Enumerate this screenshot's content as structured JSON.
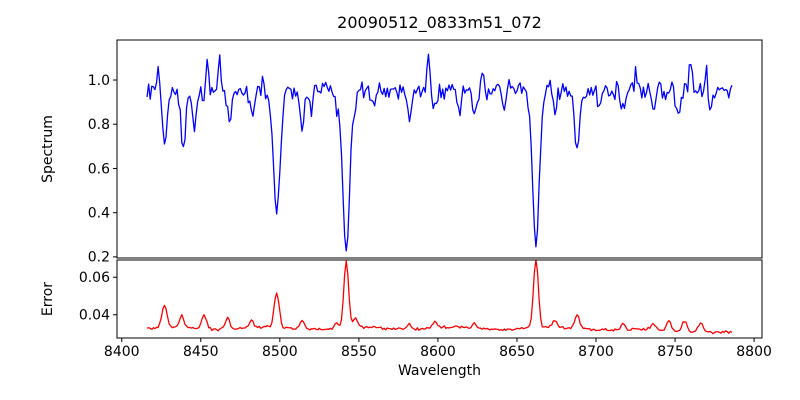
{
  "chart_data": {
    "type": "line",
    "title": "20090512_0833m51_072",
    "xlabel": "Wavelength",
    "background": "#ffffff",
    "axis_color": "#000000",
    "grid": false,
    "legend": "none",
    "xlim": [
      8397,
      8805
    ],
    "x_ticks": [
      8400,
      8450,
      8500,
      8550,
      8600,
      8650,
      8700,
      8750,
      8800
    ],
    "x_data_range": [
      8416,
      8786
    ],
    "x_step": 1,
    "panels": [
      {
        "name": "spectrum",
        "ylabel": "Spectrum",
        "ylim": [
          0.195,
          1.181
        ],
        "y_ticks": [
          0.2,
          0.4,
          0.6,
          0.8,
          1.0
        ],
        "tick_decimals": 1,
        "line_color": "#0000ff",
        "continuum": 0.955,
        "noise_amplitude": 0.05,
        "noise_seed": 12,
        "absorption_lines": [
          {
            "center": 8427,
            "depth": 0.235,
            "sigma": 1.4
          },
          {
            "center": 8439,
            "depth": 0.26,
            "sigma": 1.4
          },
          {
            "center": 8446,
            "depth": 0.17,
            "sigma": 1.1
          },
          {
            "center": 8452,
            "depth": 0.08,
            "sigma": 1.0
          },
          {
            "center": 8468,
            "depth": 0.13,
            "sigma": 1.3
          },
          {
            "center": 8482,
            "depth": 0.11,
            "sigma": 1.2
          },
          {
            "center": 8498,
            "depth": 0.565,
            "sigma": 2.1
          },
          {
            "center": 8514,
            "depth": 0.185,
            "sigma": 1.4
          },
          {
            "center": 8520,
            "depth": 0.09,
            "sigma": 1.0
          },
          {
            "center": 8536,
            "depth": 0.07,
            "sigma": 1.0
          },
          {
            "center": 8542,
            "depth": 0.72,
            "sigma": 2.3
          },
          {
            "center": 8548,
            "depth": 0.08,
            "sigma": 1.0
          },
          {
            "center": 8560,
            "depth": 0.06,
            "sigma": 1.0
          },
          {
            "center": 8582,
            "depth": 0.14,
            "sigma": 1.3
          },
          {
            "center": 8598,
            "depth": 0.1,
            "sigma": 1.1
          },
          {
            "center": 8613,
            "depth": 0.11,
            "sigma": 1.1
          },
          {
            "center": 8623,
            "depth": 0.13,
            "sigma": 1.2
          },
          {
            "center": 8642,
            "depth": 0.1,
            "sigma": 1.1
          },
          {
            "center": 8662,
            "depth": 0.675,
            "sigma": 2.2
          },
          {
            "center": 8674,
            "depth": 0.11,
            "sigma": 1.2
          },
          {
            "center": 8688,
            "depth": 0.26,
            "sigma": 1.5
          },
          {
            "center": 8702,
            "depth": 0.08,
            "sigma": 1.0
          },
          {
            "center": 8717,
            "depth": 0.1,
            "sigma": 1.2
          },
          {
            "center": 8736,
            "depth": 0.09,
            "sigma": 1.2
          },
          {
            "center": 8752,
            "depth": 0.12,
            "sigma": 1.2
          },
          {
            "center": 8772,
            "depth": 0.1,
            "sigma": 1.1
          }
        ],
        "emission_spikes": [
          {
            "center": 8423,
            "height": 0.09,
            "sigma": 0.8
          },
          {
            "center": 8454,
            "height": 0.145,
            "sigma": 0.9
          },
          {
            "center": 8462,
            "height": 0.115,
            "sigma": 0.9
          },
          {
            "center": 8489,
            "height": 0.06,
            "sigma": 0.7
          },
          {
            "center": 8529,
            "height": 0.08,
            "sigma": 0.8
          },
          {
            "center": 8594,
            "height": 0.14,
            "sigma": 0.9
          },
          {
            "center": 8628,
            "height": 0.08,
            "sigma": 0.7
          },
          {
            "center": 8645,
            "height": 0.07,
            "sigma": 0.7
          },
          {
            "center": 8725,
            "height": 0.07,
            "sigma": 0.7
          },
          {
            "center": 8760,
            "height": 0.15,
            "sigma": 0.9
          },
          {
            "center": 8770,
            "height": 0.1,
            "sigma": 0.8
          }
        ]
      },
      {
        "name": "error",
        "ylabel": "Error",
        "ylim": [
          0.0276,
          0.0692
        ],
        "y_ticks": [
          0.04,
          0.06
        ],
        "tick_decimals": 2,
        "line_color": "#ff0000",
        "baseline": 0.0328,
        "baseline_wiggle_amp": 0.0006,
        "baseline_wiggle_period": 60,
        "baseline_right_drop": 0.0024,
        "baseline_drop_start": 8690,
        "noise_amplitude": 0.0009,
        "noise_seed": 99,
        "peaks": [
          {
            "center": 8427,
            "height": 0.0115,
            "sigma": 1.6
          },
          {
            "center": 8438,
            "height": 0.0065,
            "sigma": 1.3
          },
          {
            "center": 8452,
            "height": 0.0075,
            "sigma": 1.5
          },
          {
            "center": 8467,
            "height": 0.006,
            "sigma": 1.4
          },
          {
            "center": 8482,
            "height": 0.0035,
            "sigma": 1.3
          },
          {
            "center": 8498,
            "height": 0.0185,
            "sigma": 1.6
          },
          {
            "center": 8514,
            "height": 0.0045,
            "sigma": 1.4
          },
          {
            "center": 8536,
            "height": 0.003,
            "sigma": 1.2
          },
          {
            "center": 8542,
            "height": 0.0355,
            "sigma": 1.5
          },
          {
            "center": 8548,
            "height": 0.005,
            "sigma": 1.3
          },
          {
            "center": 8582,
            "height": 0.003,
            "sigma": 1.3
          },
          {
            "center": 8598,
            "height": 0.0035,
            "sigma": 1.3
          },
          {
            "center": 8623,
            "height": 0.003,
            "sigma": 1.2
          },
          {
            "center": 8662,
            "height": 0.0365,
            "sigma": 1.5
          },
          {
            "center": 8674,
            "height": 0.004,
            "sigma": 1.3
          },
          {
            "center": 8688,
            "height": 0.0075,
            "sigma": 1.5
          },
          {
            "center": 8717,
            "height": 0.0035,
            "sigma": 1.3
          },
          {
            "center": 8736,
            "height": 0.003,
            "sigma": 1.2
          },
          {
            "center": 8746,
            "height": 0.005,
            "sigma": 1.5
          },
          {
            "center": 8756,
            "height": 0.006,
            "sigma": 1.6
          },
          {
            "center": 8766,
            "height": 0.0055,
            "sigma": 1.5
          }
        ]
      }
    ]
  }
}
